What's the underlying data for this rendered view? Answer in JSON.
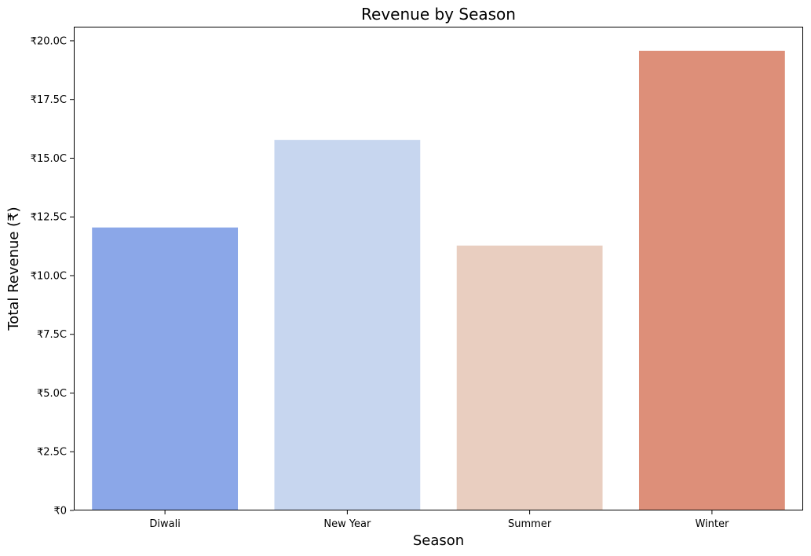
{
  "chart_data": {
    "type": "bar",
    "title": "Revenue by Season",
    "xlabel": "Season",
    "ylabel": "Total Revenue (₹)",
    "categories": [
      "Diwali",
      "New Year",
      "Summer",
      "Winter"
    ],
    "values": [
      12.05,
      15.78,
      11.28,
      19.57
    ],
    "value_unit": "crore rupees",
    "colors": [
      "#8ba7e8",
      "#c7d6ef",
      "#e9cec0",
      "#dd8f79"
    ],
    "ylim": [
      0,
      20.6
    ],
    "yticks": [
      0,
      2.5,
      5.0,
      7.5,
      10.0,
      12.5,
      15.0,
      17.5,
      20.0
    ],
    "ytick_labels": [
      "₹0",
      "₹2.5C",
      "₹5.0C",
      "₹7.5C",
      "₹10.0C",
      "₹12.5C",
      "₹15.0C",
      "₹17.5C",
      "₹20.0C"
    ],
    "grid": false,
    "legend": "none"
  }
}
